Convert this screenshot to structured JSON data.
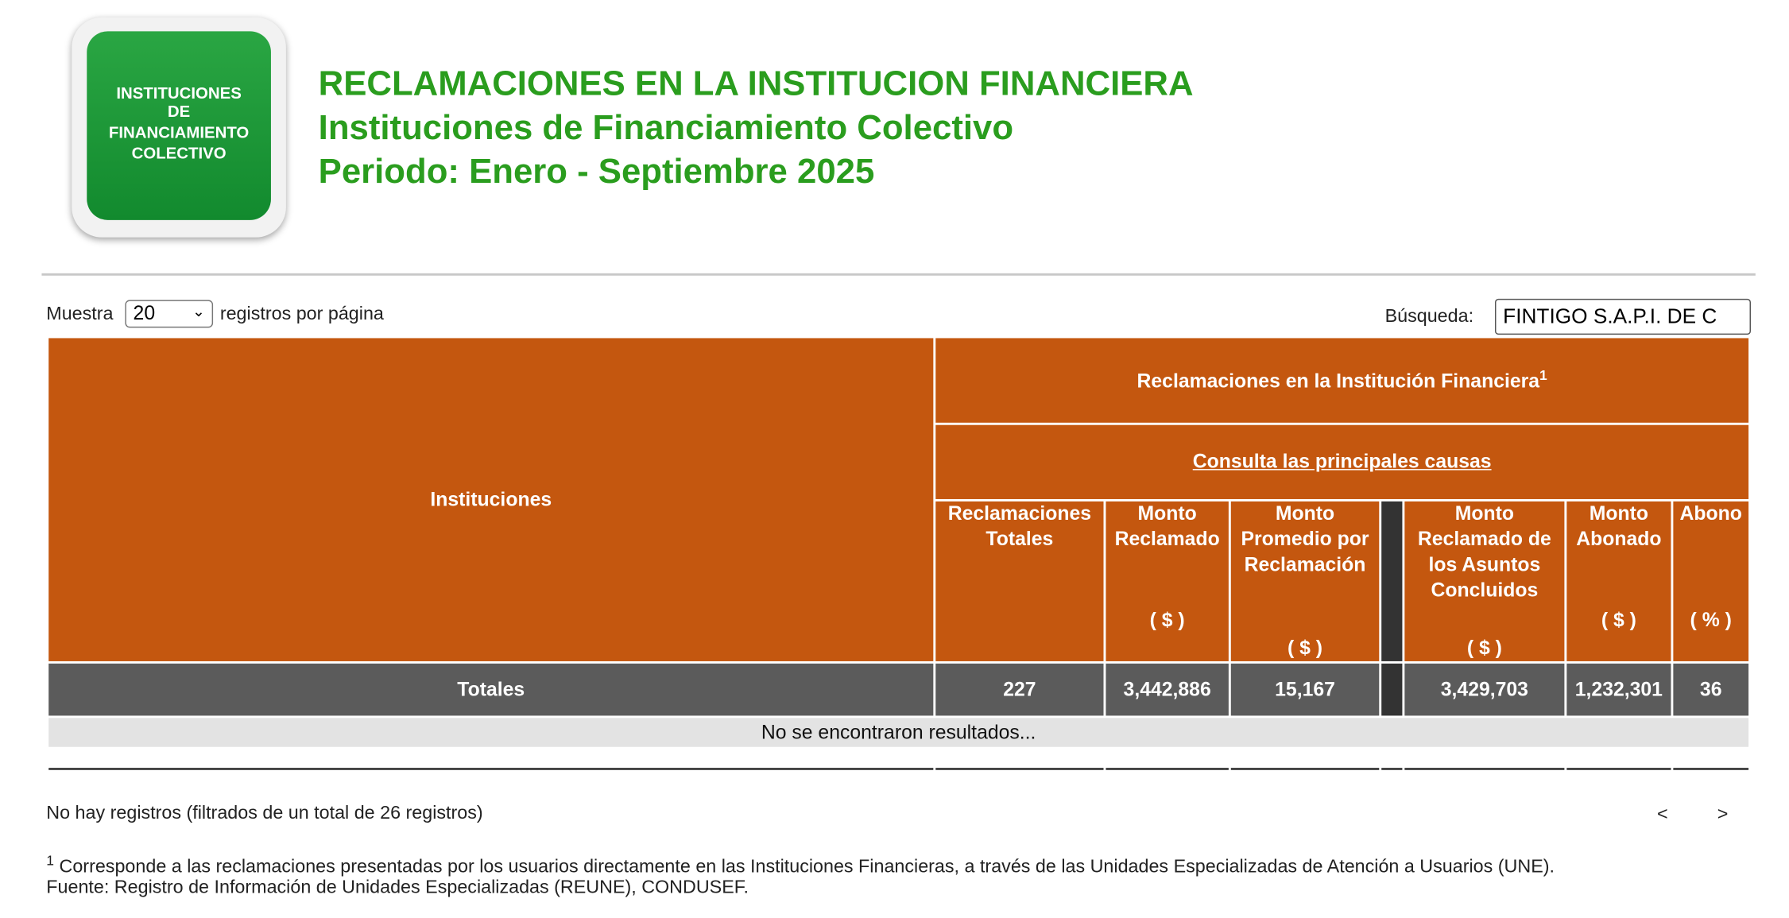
{
  "header": {
    "logo_lines": [
      "INSTITUCIONES",
      "DE",
      "FINANCIAMIENTO",
      "COLECTIVO"
    ],
    "title": "RECLAMACIONES EN LA INSTITUCION FINANCIERA",
    "subtitle": "Instituciones de Financiamiento Colectivo",
    "period": "Periodo: Enero - Septiembre 2025"
  },
  "controls": {
    "show_label": "Muestra",
    "page_size": "20",
    "per_page_label": "registros por página",
    "search_label": "Búsqueda:",
    "search_value": "FINTIGO S.A.P.I. DE C"
  },
  "table": {
    "first_header": "Instituciones",
    "group_header": "Reclamaciones en la Institución Financiera",
    "group_note": "1",
    "link": "Consulta las principales causas",
    "columns": [
      {
        "name": "Reclamaciones Totales"
      },
      {
        "name": "Monto Reclamado",
        "unit": "( $ )"
      },
      {
        "name": "Monto Promedio por Reclamación",
        "unit": "( $ )"
      },
      {
        "name": "Monto Reclamado de los Asuntos Concluidos",
        "unit": "( $ )"
      },
      {
        "name": "Monto Abonado",
        "unit": "( $ )"
      },
      {
        "name": "Abono",
        "unit": "( % )"
      }
    ],
    "totals_label": "Totales",
    "totals": [
      "227",
      "3,442,886",
      "15,167",
      "3,429,703",
      "1,232,301",
      "36"
    ],
    "empty_text": "No se encontraron resultados..."
  },
  "footer": {
    "info": "No hay registros (filtrados de un total de 26 registros)",
    "prev": "<",
    "next": ">",
    "note_mark": "1",
    "note": "Corresponde a las reclamaciones presentadas por los usuarios directamente en las Instituciones Financieras, a través de las Unidades Especializadas de Atención a Usuarios (UNE).",
    "source": "Fuente: Registro de Información de Unidades Especializadas (REUNE), CONDUSEF."
  }
}
